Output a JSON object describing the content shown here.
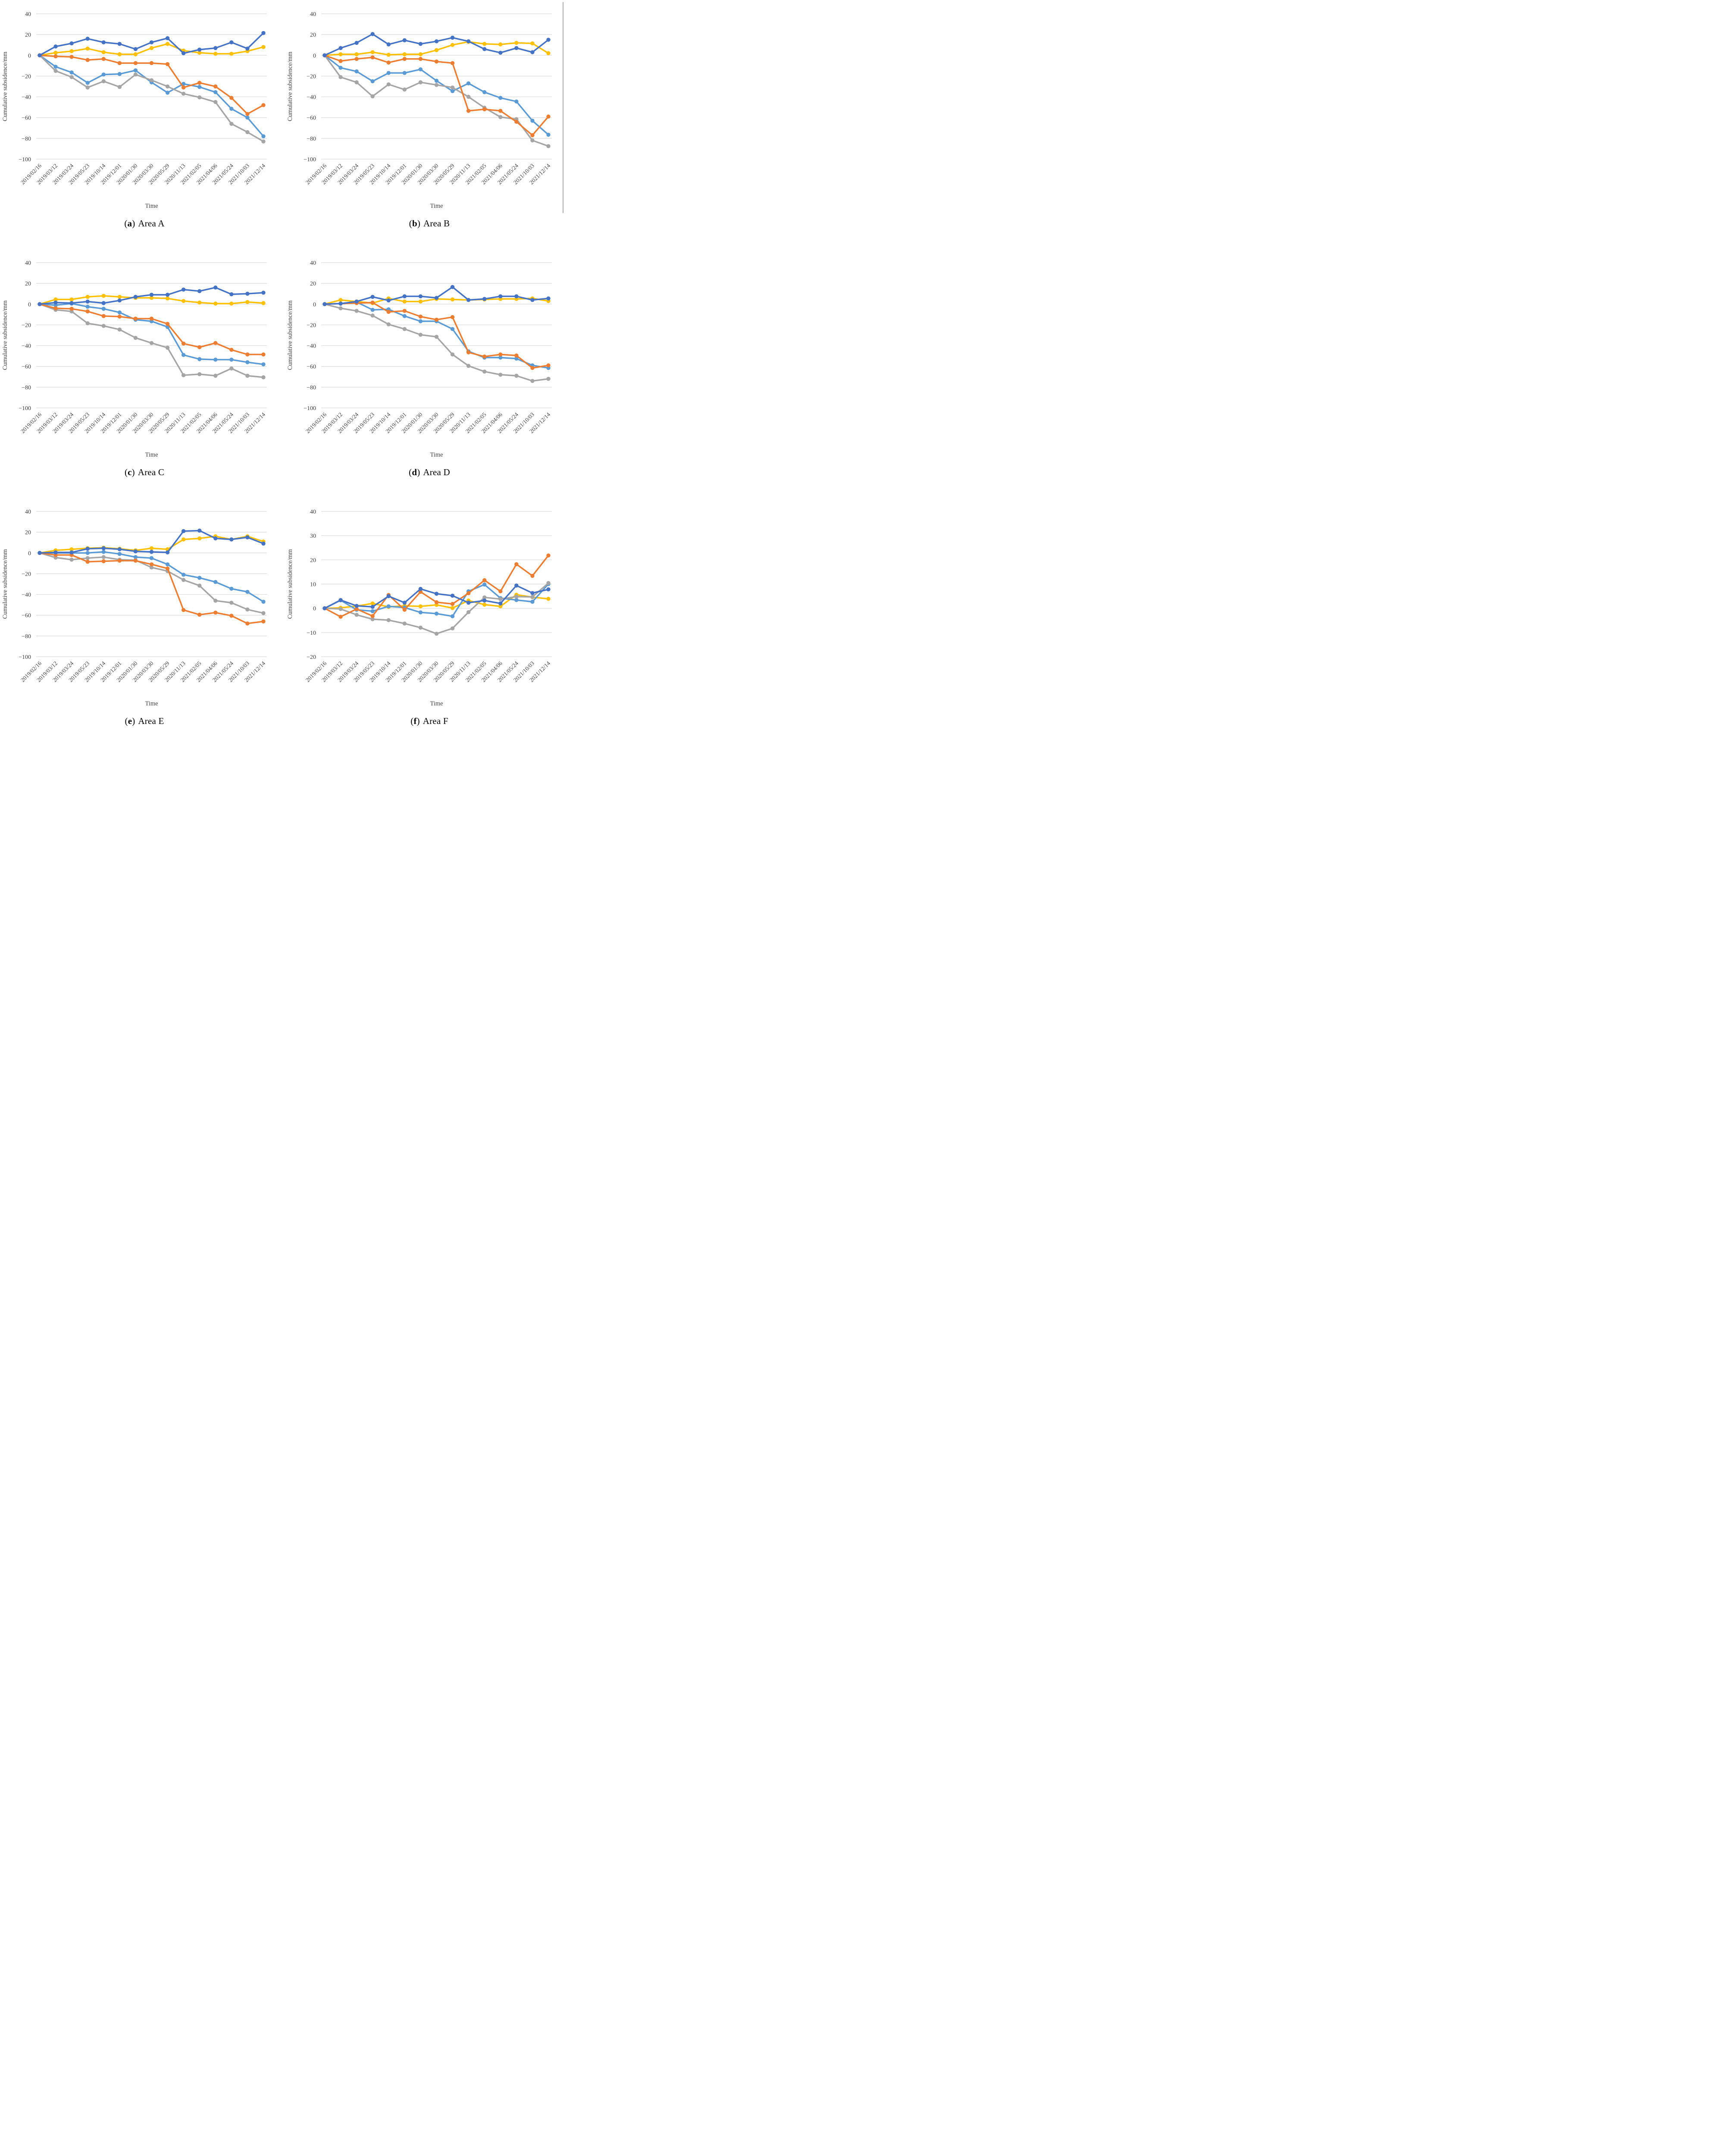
{
  "categories": [
    "2019/02/16",
    "2019/03/12",
    "2019/03/24",
    "2019/05/23",
    "2019/10/14",
    "2019/12/01",
    "2020/01/30",
    "2020/03/30",
    "2020/05/29",
    "2020/11/13",
    "2021/02/05",
    "2021/04/06",
    "2021/05/24",
    "2021/10/03",
    "2021/12/14"
  ],
  "series_colors": {
    "dark-blue": "#4472C4",
    "orange": "#ED7D31",
    "gray": "#A5A5A5",
    "yellow": "#FFC000",
    "light-blue": "#5B9BD5"
  },
  "chart_data": [
    {
      "id": "a",
      "type": "line",
      "caption": {
        "open": "(",
        "letter": "a",
        "close": ")",
        "text": "Area A"
      },
      "xlabel": "Time",
      "ylabel": "Cumulative subsidence/mm",
      "ylim": [
        -100,
        40
      ],
      "yticks": [
        40,
        20,
        0,
        -20,
        -40,
        -60,
        -80,
        -100
      ],
      "grid": true,
      "legend": "none",
      "series": [
        {
          "name": "dark-blue",
          "color": "#4472C4",
          "values": [
            0,
            8.5,
            11.5,
            16,
            12.5,
            11,
            6,
            12.5,
            16.5,
            2,
            5.5,
            7,
            12.5,
            6.5,
            21.5
          ]
        },
        {
          "name": "orange",
          "color": "#ED7D31",
          "values": [
            0,
            -1,
            -1.5,
            -4.5,
            -3.5,
            -7.5,
            -7.5,
            -7.5,
            -8.5,
            -31,
            -26.5,
            -30,
            -41,
            -56.5,
            -48
          ]
        },
        {
          "name": "gray",
          "color": "#A5A5A5",
          "values": [
            0,
            -15,
            -21,
            -31,
            -25,
            -30.5,
            -18.5,
            -24,
            -30,
            -37,
            -40.5,
            -45,
            -66,
            -74,
            -83
          ]
        },
        {
          "name": "yellow",
          "color": "#FFC000",
          "values": [
            0,
            2.5,
            4,
            6.5,
            3,
            1,
            1,
            7,
            11,
            4.5,
            2.5,
            1.5,
            1.5,
            4,
            8
          ]
        },
        {
          "name": "light-blue",
          "color": "#5B9BD5",
          "values": [
            0,
            -11,
            -16.5,
            -26.5,
            -18.5,
            -18,
            -14.5,
            -26,
            -36,
            -27.5,
            -30.5,
            -35.5,
            -51.5,
            -60,
            -78
          ]
        }
      ]
    },
    {
      "id": "b",
      "type": "line",
      "caption": {
        "open": "(",
        "letter": "b",
        "close": ")",
        "text": "Area B"
      },
      "xlabel": "Time",
      "ylabel": "Cumulative subsidence/mm",
      "ylim": [
        -100,
        40
      ],
      "yticks": [
        40,
        20,
        0,
        -20,
        -40,
        -60,
        -80,
        -100
      ],
      "grid": true,
      "legend": "none",
      "series": [
        {
          "name": "dark-blue",
          "color": "#4472C4",
          "values": [
            0,
            7,
            12,
            20.5,
            10.5,
            14.5,
            11,
            13.5,
            17,
            13.5,
            6,
            2.5,
            7,
            3,
            15
          ]
        },
        {
          "name": "orange",
          "color": "#ED7D31",
          "values": [
            0,
            -5.5,
            -3.5,
            -2,
            -7,
            -3.5,
            -3.5,
            -6,
            -7.5,
            -53.5,
            -52,
            -53.5,
            -64,
            -77,
            -59
          ]
        },
        {
          "name": "gray",
          "color": "#A5A5A5",
          "values": [
            0,
            -21,
            -26,
            -39.5,
            -28,
            -33,
            -26,
            -28.5,
            -31,
            -40,
            -50.5,
            -59.5,
            -61.5,
            -82,
            -87.5
          ]
        },
        {
          "name": "yellow",
          "color": "#FFC000",
          "values": [
            0,
            1,
            1,
            3,
            0.5,
            1,
            1,
            5,
            10,
            13,
            11,
            10.5,
            12,
            11.5,
            2
          ]
        },
        {
          "name": "light-blue",
          "color": "#5B9BD5",
          "values": [
            0,
            -12,
            -15.5,
            -25,
            -17,
            -17,
            -13.5,
            -24.5,
            -34.5,
            -27,
            -35.5,
            -41,
            -44.5,
            -63,
            -76.5
          ]
        }
      ]
    },
    {
      "id": "c",
      "type": "line",
      "caption": {
        "open": "(",
        "letter": "c",
        "close": ")",
        "text": "Area C"
      },
      "xlabel": "Time",
      "ylabel": "Cumulative subsidence/mm",
      "ylim": [
        -100,
        40
      ],
      "yticks": [
        40,
        20,
        0,
        -20,
        -40,
        -60,
        -80,
        -100
      ],
      "grid": true,
      "legend": "none",
      "series": [
        {
          "name": "dark-blue",
          "color": "#4472C4",
          "values": [
            0,
            1.5,
            1,
            2.5,
            1,
            3.5,
            7,
            9,
            9,
            14,
            12.5,
            16,
            9.5,
            10,
            11
          ]
        },
        {
          "name": "orange",
          "color": "#ED7D31",
          "values": [
            0,
            -4,
            -4.5,
            -7,
            -11.5,
            -12,
            -14,
            -14,
            -19,
            -38,
            -41.5,
            -37.5,
            -44,
            -48.5,
            -48.5
          ]
        },
        {
          "name": "gray",
          "color": "#A5A5A5",
          "values": [
            0,
            -5.5,
            -7,
            -18.5,
            -21,
            -24.5,
            -32.5,
            -37.5,
            -42,
            -68.5,
            -67.5,
            -69,
            -62,
            -69,
            -70.5
          ]
        },
        {
          "name": "yellow",
          "color": "#FFC000",
          "values": [
            0,
            4.5,
            4.5,
            7,
            8,
            7,
            6,
            6,
            5.5,
            3,
            1.5,
            0.5,
            0.5,
            2,
            1
          ]
        },
        {
          "name": "light-blue",
          "color": "#5B9BD5",
          "values": [
            0,
            -1,
            0.5,
            -2.5,
            -4.5,
            -8,
            -15,
            -16.5,
            -22,
            -49,
            -53,
            -53.5,
            -53.5,
            -56,
            -58
          ]
        }
      ]
    },
    {
      "id": "d",
      "type": "line",
      "caption": {
        "open": "(",
        "letter": "d",
        "close": ")",
        "text": "Area D"
      },
      "xlabel": "Time",
      "ylabel": "Cumulative subsidence/mm",
      "ylim": [
        -100,
        40
      ],
      "yticks": [
        40,
        20,
        0,
        -20,
        -40,
        -60,
        -80,
        -100
      ],
      "grid": true,
      "legend": "none",
      "series": [
        {
          "name": "dark-blue",
          "color": "#4472C4",
          "values": [
            0,
            0.5,
            2.5,
            7,
            3.5,
            7.5,
            7.5,
            6,
            16.5,
            4,
            5,
            7.5,
            7.5,
            4,
            5.5
          ]
        },
        {
          "name": "orange",
          "color": "#ED7D31",
          "values": [
            0,
            0.5,
            1,
            1.5,
            -7.5,
            -6.5,
            -12,
            -15,
            -12.5,
            -46.5,
            -50.5,
            -48.5,
            -49.5,
            -61.5,
            -59
          ]
        },
        {
          "name": "gray",
          "color": "#A5A5A5",
          "values": [
            0,
            -4,
            -6.5,
            -11,
            -19.5,
            -24,
            -29.5,
            -31.5,
            -48.5,
            -59.5,
            -65,
            -68,
            -69,
            -74,
            -72
          ]
        },
        {
          "name": "yellow",
          "color": "#FFC000",
          "values": [
            0,
            4,
            2.5,
            1,
            5.5,
            2.5,
            2.5,
            5,
            4.5,
            4,
            4.5,
            5,
            5,
            5.5,
            3
          ]
        },
        {
          "name": "light-blue",
          "color": "#5B9BD5",
          "values": [
            0,
            0.5,
            2,
            -5.5,
            -5,
            -11.5,
            -16.5,
            -16.5,
            -24,
            -45.5,
            -51.5,
            -51.5,
            -52.5,
            -59,
            -61.5
          ]
        }
      ]
    },
    {
      "id": "e",
      "type": "line",
      "caption": {
        "open": "(",
        "letter": "e",
        "close": ")",
        "text": "Area E"
      },
      "xlabel": "Time",
      "ylabel": "Cumulative subsidence/mm",
      "ylim": [
        -100,
        40
      ],
      "yticks": [
        40,
        20,
        0,
        -20,
        -40,
        -60,
        -80,
        -100
      ],
      "grid": true,
      "legend": "none",
      "series": [
        {
          "name": "dark-blue",
          "color": "#4472C4",
          "values": [
            0,
            0.5,
            0.5,
            4,
            4.5,
            3.5,
            1.5,
            1,
            0.5,
            21,
            21.5,
            14,
            13,
            15,
            9
          ]
        },
        {
          "name": "orange",
          "color": "#ED7D31",
          "values": [
            0,
            -2,
            -2,
            -8.5,
            -8,
            -7.5,
            -7.5,
            -11,
            -15,
            -55,
            -59.5,
            -57.5,
            -60.5,
            -68,
            -66
          ]
        },
        {
          "name": "gray",
          "color": "#A5A5A5",
          "values": [
            0,
            -4.5,
            -6.5,
            -5,
            -4,
            -6.5,
            -7,
            -14,
            -17.5,
            -26,
            -31.5,
            -46,
            -48,
            -54.5,
            -58
          ]
        },
        {
          "name": "yellow",
          "color": "#FFC000",
          "values": [
            0,
            2.5,
            3.5,
            4.5,
            5,
            4,
            2.5,
            4.5,
            3.5,
            13,
            14,
            16,
            13,
            16,
            11
          ]
        },
        {
          "name": "light-blue",
          "color": "#5B9BD5",
          "values": [
            0,
            0,
            0,
            0,
            1,
            -1,
            -4,
            -5,
            -11,
            -21,
            -24,
            -28,
            -34.5,
            -37.5,
            -47
          ]
        }
      ]
    },
    {
      "id": "f",
      "type": "line",
      "caption": {
        "open": "(",
        "letter": "f",
        "close": ")",
        "text": "Area F"
      },
      "xlabel": "Time",
      "ylabel": "Cumulative subsidence/mm",
      "ylim": [
        -20,
        40
      ],
      "yticks": [
        40,
        30,
        20,
        10,
        0,
        -10,
        -20
      ],
      "grid": true,
      "legend": "none",
      "series": [
        {
          "name": "dark-blue",
          "color": "#4472C4",
          "values": [
            0,
            3.4,
            1,
            0.6,
            5,
            2.3,
            8,
            6,
            5.2,
            2.3,
            3.2,
            2,
            9.4,
            6.3,
            7.8
          ]
        },
        {
          "name": "orange",
          "color": "#ED7D31",
          "values": [
            0,
            -3.5,
            -0.3,
            -3.2,
            5.5,
            -0.6,
            6.8,
            2.5,
            1.8,
            6.2,
            11.6,
            7,
            18.2,
            13.4,
            21.8
          ]
        },
        {
          "name": "gray",
          "color": "#A5A5A5",
          "values": [
            0,
            -0.3,
            -2.7,
            -4.5,
            -4.9,
            -6.3,
            -8,
            -10.5,
            -8.3,
            -1.6,
            4.5,
            3.8,
            4.8,
            4.7,
            10.4
          ]
        },
        {
          "name": "yellow",
          "color": "#FFC000",
          "values": [
            0,
            0.2,
            0.9,
            2,
            0.6,
            1,
            0.8,
            1.4,
            0.1,
            3.2,
            1.5,
            0.8,
            5.6,
            4.6,
            3.9
          ]
        },
        {
          "name": "light-blue",
          "color": "#5B9BD5",
          "values": [
            0,
            3.3,
            -0.6,
            -1.2,
            0.8,
            0.3,
            -1.7,
            -2.2,
            -3.3,
            7,
            9.8,
            4.2,
            3.4,
            2.7,
            10
          ]
        }
      ]
    }
  ]
}
